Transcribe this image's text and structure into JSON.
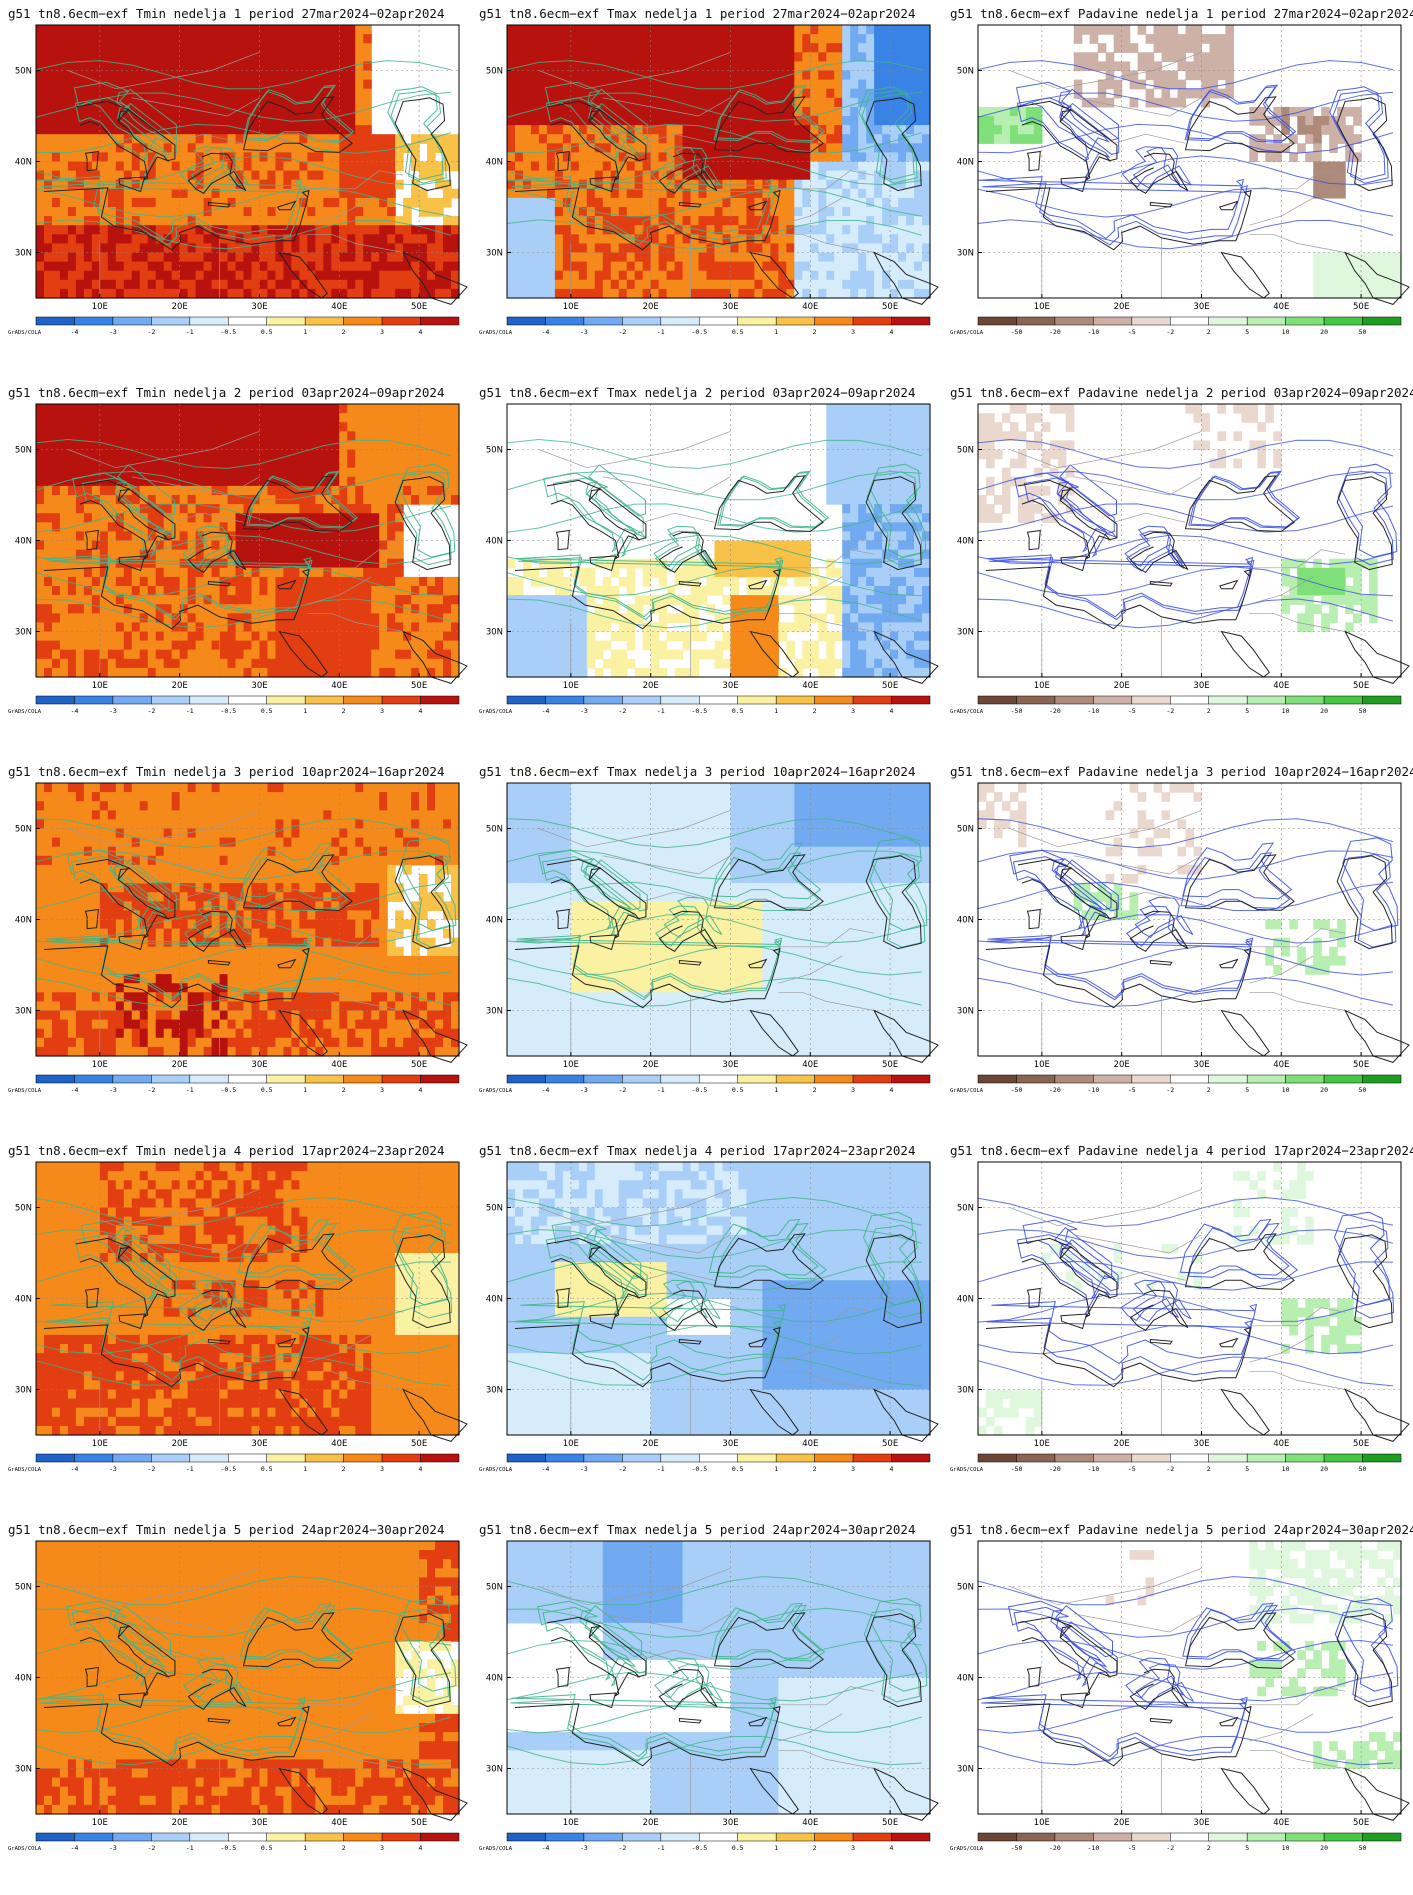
{
  "grads_label": "GrADS/COLA",
  "lat_ticks": [
    "50N",
    "40N",
    "30N"
  ],
  "lon_ticks": [
    "10E",
    "20E",
    "30E",
    "40E",
    "50E"
  ],
  "colorbars": {
    "temperature": {
      "labels": [
        "-4",
        "-3",
        "-2",
        "-1",
        "-0.5",
        "0.5",
        "1",
        "2",
        "3",
        "4"
      ],
      "colors": [
        "#1f62c8",
        "#3a83e6",
        "#72aaf2",
        "#a9cff8",
        "#d6ecfb",
        "#ffffff",
        "#fbf1a3",
        "#f8c148",
        "#f58a1b",
        "#e33d12",
        "#b8120f"
      ]
    },
    "precip": {
      "labels": [
        "-50",
        "-20",
        "-10",
        "-5",
        "-2",
        "2",
        "5",
        "10",
        "20",
        "50"
      ],
      "colors": [
        "#6e4636",
        "#8c6452",
        "#ad8a7a",
        "#cdb0a6",
        "#ead8cf",
        "#ffffff",
        "#dff7dc",
        "#b6efaf",
        "#7fe07a",
        "#44c743",
        "#1d9e1f"
      ]
    }
  },
  "panels": [
    {
      "id": "w1-tmin",
      "title": "g51  tn8.6ecm−exf  Tmin  nedelja  1  period  27mar2024−02apr2024",
      "var": "tmin",
      "week": 1,
      "bar": "temperature"
    },
    {
      "id": "w1-tmax",
      "title": "g51  tn8.6ecm−exf  Tmax  nedelja  1  period  27mar2024−02apr2024",
      "var": "tmax",
      "week": 1,
      "bar": "temperature"
    },
    {
      "id": "w1-pad",
      "title": "g51  tn8.6ecm−exf  Padavine  nedelja  1  period  27mar2024−02apr2024",
      "var": "pad",
      "week": 1,
      "bar": "precip"
    },
    {
      "id": "w2-tmin",
      "title": "g51  tn8.6ecm−exf  Tmin  nedelja  2  period  03apr2024−09apr2024",
      "var": "tmin",
      "week": 2,
      "bar": "temperature"
    },
    {
      "id": "w2-tmax",
      "title": "g51  tn8.6ecm−exf  Tmax  nedelja  2  period  03apr2024−09apr2024",
      "var": "tmax",
      "week": 2,
      "bar": "temperature"
    },
    {
      "id": "w2-pad",
      "title": "g51  tn8.6ecm−exf  Padavine  nedelja  2  period  03apr2024−09apr2024",
      "var": "pad",
      "week": 2,
      "bar": "precip"
    },
    {
      "id": "w3-tmin",
      "title": "g51  tn8.6ecm−exf  Tmin  nedelja  3  period  10apr2024−16apr2024",
      "var": "tmin",
      "week": 3,
      "bar": "temperature"
    },
    {
      "id": "w3-tmax",
      "title": "g51  tn8.6ecm−exf  Tmax  nedelja  3  period  10apr2024−16apr2024",
      "var": "tmax",
      "week": 3,
      "bar": "temperature"
    },
    {
      "id": "w3-pad",
      "title": "g51  tn8.6ecm−exf  Padavine  nedelja  3  period  10apr2024−16apr2024",
      "var": "pad",
      "week": 3,
      "bar": "precip"
    },
    {
      "id": "w4-tmin",
      "title": "g51  tn8.6ecm−exf  Tmin  nedelja  4  period  17apr2024−23apr2024",
      "var": "tmin",
      "week": 4,
      "bar": "temperature"
    },
    {
      "id": "w4-tmax",
      "title": "g51  tn8.6ecm−exf  Tmax  nedelja  4  period  17apr2024−23apr2024",
      "var": "tmax",
      "week": 4,
      "bar": "temperature"
    },
    {
      "id": "w4-pad",
      "title": "g51  tn8.6ecm−exf  Padavine  nedelja  4  period  17apr2024−23apr2024",
      "var": "pad",
      "week": 4,
      "bar": "precip"
    },
    {
      "id": "w5-tmin",
      "title": "g51  tn8.6ecm−exf  Tmin  nedelja  5  period  24apr2024−30apr2024",
      "var": "tmin",
      "week": 5,
      "bar": "temperature"
    },
    {
      "id": "w5-tmax",
      "title": "g51  tn8.6ecm−exf  Tmax  nedelja  5  period  24apr2024−30apr2024",
      "var": "tmax",
      "week": 5,
      "bar": "temperature"
    },
    {
      "id": "w5-pad",
      "title": "g51  tn8.6ecm−exf  Padavine  nedelja  5  period  24apr2024−30apr2024",
      "var": "pad",
      "week": 5,
      "bar": "precip"
    }
  ]
}
